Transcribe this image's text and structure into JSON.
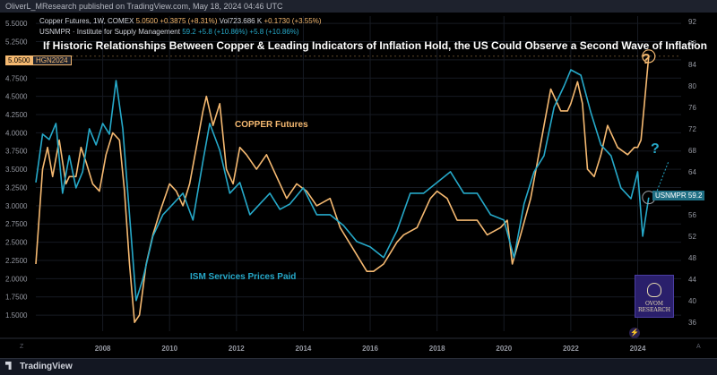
{
  "header": {
    "publisher_line": "OliverL_MResearch published on TradingView.com, May 18, 2024 04:46 UTC"
  },
  "legend": {
    "copper": {
      "name": "Copper Futures, 1W, COMEX",
      "price": "5.0500",
      "change": "+0.3875 (+8.31%)",
      "volume": "Vol723.686 K",
      "vol_change": "+0.1730 (+3.55%)"
    },
    "ism": {
      "name": "USNMPR · Institute for Supply Management",
      "value": "59.2",
      "change": "+5.8 (+10.86%)",
      "change2": "+5.8 (+10.86%)"
    }
  },
  "price_tags": {
    "copper_price": "5.0500",
    "copper_symbol": "HGN2024",
    "ism_symbol": "USNMPR",
    "ism_value": "59.2"
  },
  "annotations": {
    "q1": "?",
    "q2": "?"
  },
  "logo": {
    "text": "OVOM\nRESEARCH"
  },
  "footer": {
    "brand": "TradingView",
    "left_corner": "Z",
    "right_corner": "A"
  },
  "colors": {
    "copper": "#f5b971",
    "ism": "#26a9c9",
    "background": "#000000"
  },
  "chart_data": {
    "type": "line",
    "title": "If Historic Relationships Between Copper & Leading Indicators of Inflation Hold, the US Could Observe a Second Wave of Inflation",
    "x_ticks": [
      "2008",
      "2010",
      "2012",
      "2014",
      "2016",
      "2018",
      "2020",
      "2022",
      "2024"
    ],
    "left_axis": {
      "ticks": [
        "1.5000",
        "1.7500",
        "2.0000",
        "2.2500",
        "2.5000",
        "2.7500",
        "3.0000",
        "3.2500",
        "3.5000",
        "3.7500",
        "4.0000",
        "4.2500",
        "4.5000",
        "4.7500",
        "5.0000",
        "5.2500",
        "5.5000"
      ],
      "ylim": [
        1.28,
        5.6
      ]
    },
    "right_axis": {
      "ticks": [
        "36",
        "40",
        "44",
        "48",
        "52",
        "56",
        "60",
        "64",
        "68",
        "72",
        "76",
        "80",
        "84",
        "88",
        "92"
      ],
      "ylim": [
        34.3,
        93
      ]
    },
    "series": [
      {
        "name": "COPPER Futures",
        "axis": "left",
        "x": [
          2006.0,
          2006.2,
          2006.35,
          2006.5,
          2006.7,
          2006.9,
          2007.0,
          2007.2,
          2007.35,
          2007.5,
          2007.7,
          2007.9,
          2008.1,
          2008.3,
          2008.5,
          2008.65,
          2008.8,
          2008.95,
          2009.1,
          2009.3,
          2009.5,
          2009.7,
          2010.0,
          2010.2,
          2010.4,
          2010.6,
          2010.8,
          2011.0,
          2011.1,
          2011.3,
          2011.5,
          2011.7,
          2011.9,
          2012.1,
          2012.3,
          2012.6,
          2012.9,
          2013.2,
          2013.5,
          2013.8,
          2014.1,
          2014.4,
          2014.8,
          2015.1,
          2015.5,
          2015.9,
          2016.1,
          2016.4,
          2016.8,
          2017.0,
          2017.4,
          2017.8,
          2018.0,
          2018.3,
          2018.6,
          2018.9,
          2019.2,
          2019.5,
          2019.9,
          2020.1,
          2020.25,
          2020.5,
          2020.8,
          2021.0,
          2021.2,
          2021.4,
          2021.7,
          2021.9,
          2022.0,
          2022.2,
          2022.35,
          2022.5,
          2022.7,
          2022.9,
          2023.1,
          2023.4,
          2023.7,
          2023.9,
          2024.0,
          2024.1,
          2024.2,
          2024.33
        ],
        "values": [
          2.2,
          3.5,
          3.8,
          3.4,
          3.9,
          3.3,
          3.4,
          3.4,
          3.8,
          3.6,
          3.3,
          3.2,
          3.7,
          4.0,
          3.9,
          3.2,
          2.2,
          1.4,
          1.5,
          2.2,
          2.6,
          2.9,
          3.3,
          3.2,
          3.0,
          3.3,
          3.8,
          4.3,
          4.5,
          4.1,
          4.4,
          3.5,
          3.3,
          3.8,
          3.7,
          3.5,
          3.7,
          3.4,
          3.1,
          3.3,
          3.2,
          3.0,
          3.1,
          2.7,
          2.4,
          2.1,
          2.1,
          2.2,
          2.5,
          2.6,
          2.7,
          3.1,
          3.2,
          3.1,
          2.8,
          2.8,
          2.8,
          2.6,
          2.7,
          2.8,
          2.2,
          2.6,
          3.1,
          3.6,
          4.1,
          4.6,
          4.3,
          4.3,
          4.4,
          4.7,
          4.4,
          3.5,
          3.4,
          3.7,
          4.1,
          3.8,
          3.7,
          3.8,
          3.8,
          3.9,
          4.4,
          5.05
        ]
      },
      {
        "name": "ISM Services Prices Paid",
        "axis": "right",
        "x": [
          2006.0,
          2006.2,
          2006.4,
          2006.6,
          2006.8,
          2007.0,
          2007.2,
          2007.4,
          2007.6,
          2007.8,
          2008.0,
          2008.2,
          2008.4,
          2008.6,
          2008.8,
          2009.0,
          2009.2,
          2009.5,
          2009.8,
          2010.1,
          2010.4,
          2010.7,
          2011.0,
          2011.2,
          2011.5,
          2011.8,
          2012.1,
          2012.4,
          2012.7,
          2013.0,
          2013.3,
          2013.6,
          2014.0,
          2014.4,
          2014.8,
          2015.2,
          2015.6,
          2016.0,
          2016.4,
          2016.8,
          2017.2,
          2017.6,
          2018.0,
          2018.4,
          2018.8,
          2019.2,
          2019.6,
          2020.0,
          2020.3,
          2020.6,
          2020.9,
          2021.2,
          2021.5,
          2021.8,
          2022.0,
          2022.3,
          2022.6,
          2022.9,
          2023.2,
          2023.5,
          2023.8,
          2024.0,
          2024.15,
          2024.33
        ],
        "values": [
          62,
          71,
          70,
          73,
          60,
          67,
          61,
          64,
          72,
          69,
          73,
          71,
          81,
          72,
          56,
          40,
          44,
          52,
          56,
          58,
          60,
          55,
          66,
          73,
          68,
          60,
          62,
          56,
          58,
          60,
          57,
          58,
          61,
          56,
          56,
          54,
          51,
          50,
          48,
          53,
          60,
          60,
          62,
          64,
          60,
          60,
          56,
          55,
          48,
          58,
          64,
          67,
          76,
          80,
          83,
          82,
          75,
          69,
          67,
          61,
          59,
          64,
          52,
          59.2
        ]
      }
    ]
  }
}
